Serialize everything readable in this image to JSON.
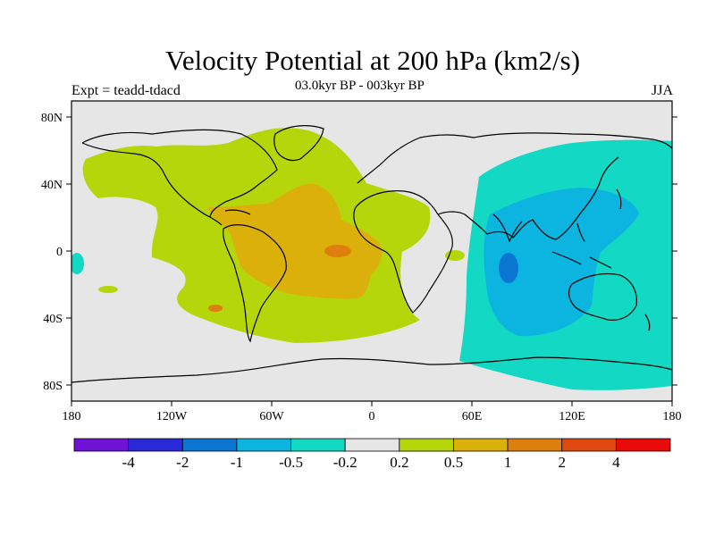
{
  "title": "Velocity Potential at 200 hPa (km2/s)",
  "subtitle": "03.0kyr BP - 003kyr BP",
  "left_label": "Expt = teadd-tdacd",
  "right_label": "JJA",
  "lat_labels": [
    "80N",
    "40N",
    "0",
    "40S",
    "80S"
  ],
  "lon_labels": [
    "180",
    "120W",
    "60W",
    "0",
    "60E",
    "120E",
    "180"
  ],
  "colorbar": {
    "colors": [
      "#6f12d6",
      "#2a2ad8",
      "#0b76d2",
      "#0cb5e0",
      "#12d8c4",
      "#e6e6e6",
      "#b6d60c",
      "#dcb00a",
      "#dd7f0c",
      "#df4910",
      "#ea0a0a"
    ],
    "labels": [
      "-4",
      "-2",
      "-1",
      "-0.5",
      "-0.2",
      "0.2",
      "0.5",
      "1",
      "2",
      "4"
    ]
  }
}
